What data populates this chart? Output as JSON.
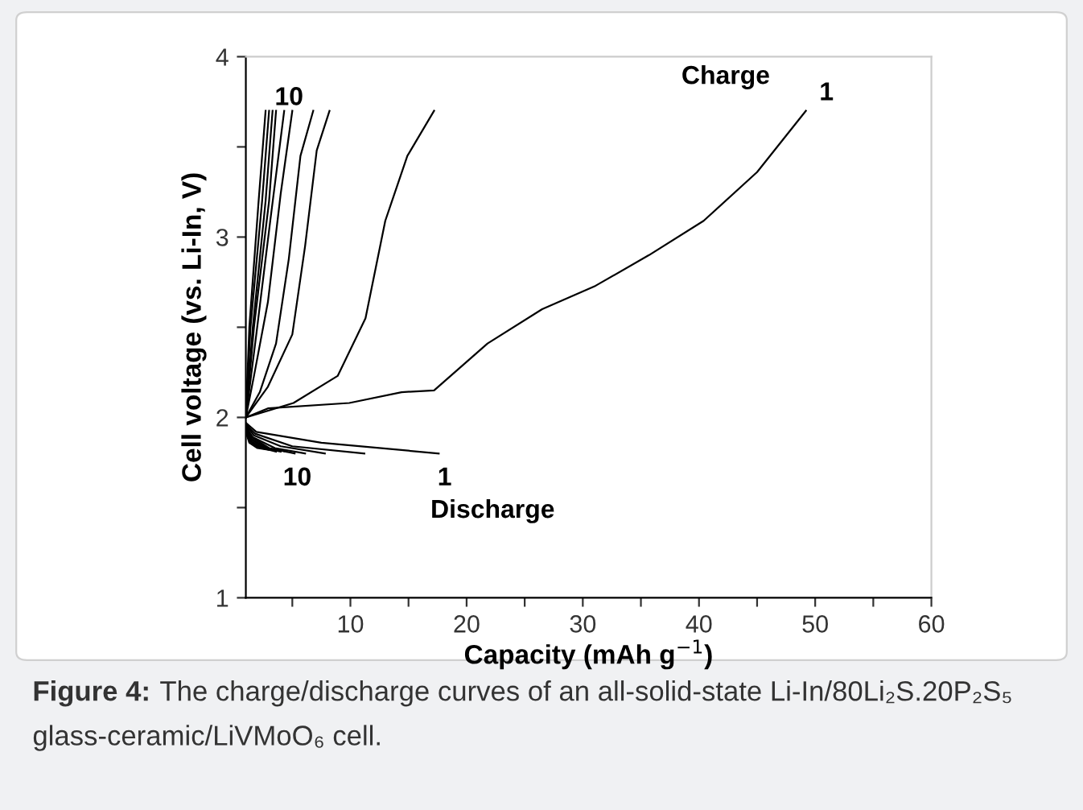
{
  "chart_data": {
    "type": "line",
    "xlabel": "Capacity (mAh g$^{−1}$)",
    "ylabel": "Cell voltage (vs. Li-In, V)",
    "xlim": [
      1,
      60
    ],
    "ylim": [
      1,
      4
    ],
    "xticks": [
      {
        "value": 5,
        "label": null
      },
      10,
      {
        "value": 15,
        "label": null
      },
      20,
      {
        "value": 25,
        "label": null
      },
      30,
      {
        "value": 35,
        "label": null
      },
      40,
      {
        "value": 45,
        "label": null
      },
      50,
      {
        "value": 55,
        "label": null
      },
      60
    ],
    "yticks": [
      1,
      {
        "value": 1.5,
        "label": null
      },
      2,
      {
        "value": 2.5,
        "label": null
      },
      3,
      {
        "value": 3.5,
        "label": null
      },
      4
    ],
    "grid": false,
    "legend": false,
    "marker": "none",
    "line_style": "solid",
    "series": [
      {
        "color": "#000000",
        "x": [
          1,
          2.9,
          9.9,
          14.4,
          17.2,
          21.8,
          26.5,
          31.1,
          35.7,
          40.4,
          45,
          49.2
        ],
        "values": [
          2.0,
          2.05,
          2.08,
          2.14,
          2.15,
          2.41,
          2.6,
          2.73,
          2.9,
          3.09,
          3.36,
          3.7
        ]
      },
      {
        "color": "#000000",
        "x": [
          1,
          5.1,
          8.9,
          11.3,
          13,
          14.9,
          17.2
        ],
        "values": [
          2.0,
          2.08,
          2.23,
          2.55,
          3.09,
          3.45,
          3.7
        ]
      },
      {
        "color": "#000000",
        "x": [
          1,
          2.9,
          5,
          6.1,
          7.1,
          8.2
        ],
        "values": [
          2.0,
          2.17,
          2.46,
          2.95,
          3.48,
          3.7
        ]
      },
      {
        "color": "#000000",
        "x": [
          1,
          2.2,
          3.6,
          4.7,
          5.7,
          6.8
        ],
        "values": [
          2.0,
          2.14,
          2.41,
          2.88,
          3.45,
          3.7
        ]
      },
      {
        "color": "#000000",
        "x": [
          1,
          1.7,
          2.9,
          4,
          5
        ],
        "values": [
          2.0,
          2.23,
          2.64,
          3.24,
          3.7
        ]
      },
      {
        "color": "#000000",
        "x": [
          1,
          1.9,
          3.1,
          4.3
        ],
        "values": [
          2.0,
          2.46,
          3.09,
          3.7
        ]
      },
      {
        "color": "#000000",
        "x": [
          1,
          1.7,
          3,
          3.6
        ],
        "values": [
          2.0,
          2.5,
          3.2,
          3.7
        ]
      },
      {
        "color": "#000000",
        "x": [
          1,
          1.6,
          2.7,
          3.3
        ],
        "values": [
          2.0,
          2.5,
          3.2,
          3.7
        ]
      },
      {
        "color": "#000000",
        "x": [
          1,
          1.4,
          2.4,
          3
        ],
        "values": [
          2.0,
          2.5,
          3.2,
          3.7
        ]
      },
      {
        "color": "#000000",
        "x": [
          1,
          1.3,
          2.1,
          2.7
        ],
        "values": [
          2.0,
          2.5,
          3.2,
          3.7
        ]
      },
      {
        "color": "#000000",
        "x": [
          1,
          1.9,
          7.5,
          17.6
        ],
        "values": [
          1.97,
          1.92,
          1.86,
          1.8
        ]
      },
      {
        "color": "#000000",
        "x": [
          1,
          1.8,
          5,
          11.2
        ],
        "values": [
          1.96,
          1.91,
          1.84,
          1.8
        ]
      },
      {
        "color": "#000000",
        "x": [
          1,
          1.7,
          4,
          7.8
        ],
        "values": [
          1.96,
          1.9,
          1.84,
          1.8
        ]
      },
      {
        "color": "#000000",
        "x": [
          1,
          1.6,
          3.5,
          6.1
        ],
        "values": [
          1.95,
          1.89,
          1.83,
          1.8
        ]
      },
      {
        "color": "#000000",
        "x": [
          1,
          1.5,
          3,
          5.2
        ],
        "values": [
          1.95,
          1.89,
          1.83,
          1.8
        ]
      },
      {
        "color": "#000000",
        "x": [
          1,
          1.5,
          2.8,
          4.5
        ],
        "values": [
          1.94,
          1.88,
          1.83,
          1.81
        ]
      },
      {
        "color": "#000000",
        "x": [
          1,
          1.4,
          2.6,
          4
        ],
        "values": [
          1.94,
          1.88,
          1.83,
          1.81
        ]
      },
      {
        "color": "#000000",
        "x": [
          1,
          1.4,
          2.4,
          3.6
        ],
        "values": [
          1.93,
          1.87,
          1.83,
          1.81
        ]
      },
      {
        "color": "#000000",
        "x": [
          1,
          1.3,
          2.2,
          3.3
        ],
        "values": [
          1.93,
          1.87,
          1.83,
          1.82
        ]
      },
      {
        "color": "#000000",
        "x": [
          1,
          1.3,
          2,
          3
        ],
        "values": [
          1.92,
          1.86,
          1.83,
          1.82
        ]
      }
    ],
    "annotations": [
      "10",
      "Charge",
      "1",
      "10",
      "1",
      "Discharge",
      "Figure 4:",
      "The charge/discharge curves of an all-solid-state Li-In/80Li₂S.20P₂S₅ glass-ceramic/LiVMoO₆ cell."
    ]
  }
}
